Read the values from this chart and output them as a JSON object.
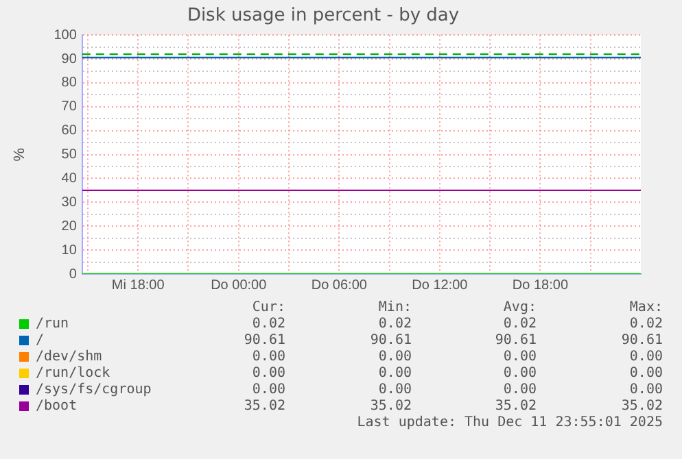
{
  "chart_data": {
    "type": "line",
    "title": "Disk usage in percent - by day",
    "ylabel": "%",
    "x": [
      "2025-12-10T14:40",
      "2025-12-12T00:00"
    ],
    "xlim": [
      "2025-12-10T14:40",
      "2025-12-12T00:00"
    ],
    "xticks": [
      {
        "value": "2025-12-10T15:00",
        "label": null
      },
      {
        "value": "2025-12-10T18:00",
        "label": "Mi 18:00"
      },
      {
        "value": "2025-12-10T21:00",
        "label": null
      },
      {
        "value": "2025-12-11T00:00",
        "label": "Do 00:00"
      },
      {
        "value": "2025-12-11T03:00",
        "label": null
      },
      {
        "value": "2025-12-11T06:00",
        "label": "Do 06:00"
      },
      {
        "value": "2025-12-11T09:00",
        "label": null
      },
      {
        "value": "2025-12-11T12:00",
        "label": "Do 12:00"
      },
      {
        "value": "2025-12-11T15:00",
        "label": null
      },
      {
        "value": "2025-12-11T18:00",
        "label": "Do 18:00"
      },
      {
        "value": "2025-12-11T21:00",
        "label": null
      }
    ],
    "ylim": [
      0,
      100
    ],
    "yticks": [
      0,
      {
        "value": 5,
        "label": null
      },
      10,
      {
        "value": 15,
        "label": null
      },
      20,
      {
        "value": 25,
        "label": null
      },
      30,
      {
        "value": 35,
        "label": null
      },
      40,
      {
        "value": 45,
        "label": null
      },
      50,
      {
        "value": 55,
        "label": null
      },
      60,
      {
        "value": 65,
        "label": null
      },
      70,
      {
        "value": 75,
        "label": null
      },
      80,
      {
        "value": 85,
        "label": null
      },
      90,
      {
        "value": 95,
        "label": null
      },
      100
    ],
    "grid": true,
    "legend": "bottom",
    "marker": "none",
    "line_style": "solid",
    "series": [
      {
        "name": "/run",
        "color": "#00cc00",
        "values": [
          0.02,
          0.02
        ]
      },
      {
        "name": "/",
        "color": "#0066b3",
        "values": [
          90.61,
          90.61
        ]
      },
      {
        "name": "/dev/shm",
        "color": "#ff8000",
        "values": [
          null,
          null
        ]
      },
      {
        "name": "/run/lock",
        "color": "#ffcc00",
        "values": [
          null,
          null
        ]
      },
      {
        "name": "/sys/fs/cgroup",
        "color": "#330099",
        "values": [
          null,
          null
        ]
      },
      {
        "name": "/boot",
        "color": "#990099",
        "values": [
          35.02,
          35.02
        ]
      }
    ],
    "ref_lines": [
      {
        "axis": "y",
        "value": 92,
        "color": "#00aa00",
        "line_style": "dashed"
      }
    ],
    "annotations": [
      "Cur:",
      "Min:",
      "Avg:",
      "Max:",
      "0.02",
      "0.02",
      "0.02",
      "0.02",
      "90.61",
      "90.61",
      "90.61",
      "90.61",
      "0.00",
      "0.00",
      "0.00",
      "0.00",
      "0.00",
      "0.00",
      "0.00",
      "0.00",
      "0.00",
      "0.00",
      "0.00",
      "0.00",
      "35.02",
      "35.02",
      "35.02",
      "35.02",
      "Last update: Thu Dec 11 23:55:01 2025"
    ]
  }
}
